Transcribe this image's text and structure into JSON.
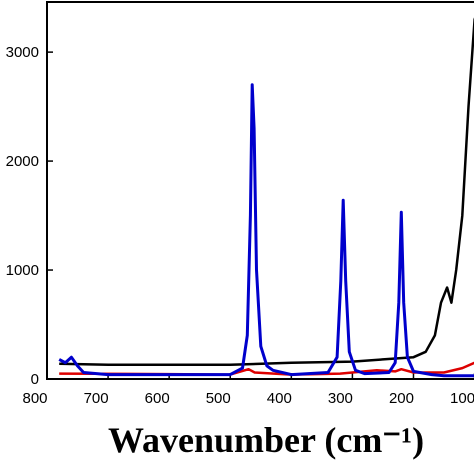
{
  "chart_data": {
    "type": "line",
    "x_label": "Wavenumber (cm⁻¹)",
    "xlim": [
      800,
      78
    ],
    "ylim": [
      0,
      3460
    ],
    "xticks": [
      800,
      700,
      600,
      500,
      400,
      300,
      200,
      100
    ],
    "yticks": [
      0,
      1000,
      2000,
      3000
    ],
    "series": [
      {
        "color": "#000000",
        "x": [
          780,
          700,
          600,
          500,
          400,
          300,
          250,
          200,
          180,
          165,
          155,
          145,
          138,
          130,
          120,
          110,
          100,
          90
        ],
        "values": [
          140,
          130,
          130,
          130,
          150,
          160,
          180,
          200,
          250,
          400,
          700,
          840,
          700,
          1000,
          1500,
          2500,
          3300,
          3460
        ]
      },
      {
        "color": "#dd0000",
        "x": [
          780,
          600,
          500,
          470,
          460,
          400,
          320,
          300,
          260,
          230,
          220,
          200,
          150,
          120,
          100,
          80
        ],
        "values": [
          50,
          45,
          40,
          90,
          60,
          40,
          50,
          60,
          80,
          70,
          90,
          60,
          60,
          100,
          150,
          180
        ]
      },
      {
        "color": "#0000cc",
        "x": [
          780,
          770,
          760,
          750,
          740,
          700,
          600,
          500,
          480,
          472,
          467,
          464,
          461,
          457,
          450,
          440,
          430,
          400,
          340,
          325,
          319,
          315,
          311,
          305,
          295,
          280,
          240,
          230,
          224,
          220,
          216,
          210,
          200,
          170,
          150,
          100,
          80
        ],
        "values": [
          180,
          150,
          200,
          120,
          60,
          40,
          40,
          40,
          100,
          400,
          1500,
          2700,
          2300,
          1000,
          300,
          120,
          80,
          40,
          60,
          200,
          900,
          1640,
          900,
          250,
          80,
          50,
          60,
          150,
          700,
          1530,
          700,
          200,
          70,
          40,
          30,
          30,
          30
        ]
      }
    ]
  }
}
